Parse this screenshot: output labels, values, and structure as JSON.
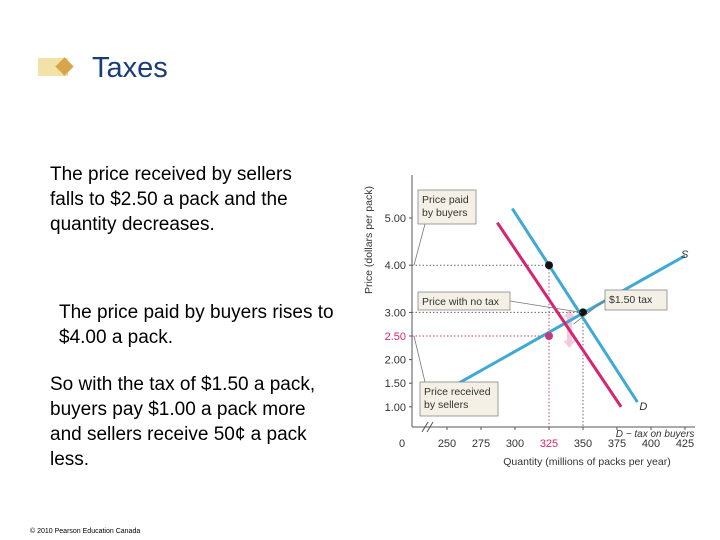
{
  "slide": {
    "title": "Taxes",
    "paragraphs": [
      "The price received by sellers falls to $2.50 a pack and the quantity decreases.",
      "The price paid by buyers rises to $4.00 a pack.",
      "So with the tax of $1.50 a pack, buyers pay $1.00 a pack more and sellers receive 50¢ a pack less."
    ],
    "copyright": "© 2010 Pearson Education Canada"
  },
  "colors": {
    "title": "#1a3c7a",
    "supply": "#3fa9d6",
    "demand_original": "#3fa9d6",
    "demand_taxed": "#d6246e",
    "dots": "#c23b7a",
    "tax_arrow": "#f5c8dc"
  },
  "chart_data": {
    "type": "line",
    "xlabel": "Quantity (millions of packs per year)",
    "ylabel": "Price (dollars per pack)",
    "x_ticks": [
      "0",
      "250",
      "275",
      "300",
      "325",
      "350",
      "375",
      "400",
      "425"
    ],
    "y_ticks": [
      "1.00",
      "1.50",
      "2.00",
      "2.50",
      "3.00",
      "4.00",
      "5.00"
    ],
    "highlight_ticks": {
      "x": "325",
      "y": "2.50"
    },
    "xlim": [
      225,
      430
    ],
    "ylim": [
      0.5,
      5.2
    ],
    "axis_break": true,
    "series": [
      {
        "name": "S",
        "x": [
          240,
          425
        ],
        "y": [
          1.2,
          4.2
        ]
      },
      {
        "name": "D",
        "x": [
          298,
          390
        ],
        "y": [
          5.2,
          1.1
        ]
      },
      {
        "name": "D − tax on buyers",
        "x": [
          287,
          378
        ],
        "y": [
          4.9,
          1.0
        ]
      }
    ],
    "points": [
      {
        "x": 325,
        "y": 4.0
      },
      {
        "x": 350,
        "y": 3.0
      },
      {
        "x": 325,
        "y": 2.5
      }
    ],
    "annotations": [
      {
        "lines": [
          "Price paid",
          "by buyers"
        ]
      },
      {
        "lines": [
          "Price with no tax"
        ]
      },
      {
        "lines": [
          "$1.50 tax"
        ]
      },
      {
        "lines": [
          "Price received",
          "by sellers"
        ]
      }
    ]
  }
}
